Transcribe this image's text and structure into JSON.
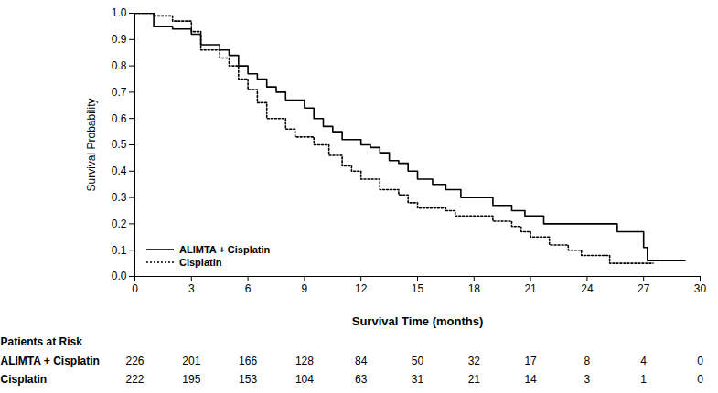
{
  "chart_data": {
    "type": "line",
    "x_label": "Survival Time (months)",
    "y_label": "Survival Probability",
    "xlim": [
      0,
      30
    ],
    "xticks": [
      0,
      3,
      6,
      9,
      12,
      15,
      18,
      21,
      24,
      27,
      30
    ],
    "ylim": [
      0,
      1
    ],
    "yticks": [
      {
        "value": 0,
        "label": "0.0"
      },
      0.1,
      0.2,
      0.3,
      0.4,
      0.5,
      0.6,
      0.7,
      0.8,
      0.9,
      {
        "value": 1,
        "label": "1.0"
      }
    ],
    "grid": false,
    "legend": "lower left",
    "series": [
      {
        "name": "ALIMTA + Cisplatin",
        "color": "#000000",
        "line_style": "solid",
        "x": [
          0,
          1,
          2,
          3,
          3.5,
          4.5,
          5,
          5.5,
          6,
          6.5,
          7,
          7.5,
          8,
          9,
          9.5,
          10,
          10.5,
          11,
          12,
          12.5,
          13,
          13.5,
          14,
          14.5,
          15,
          15.8,
          16.5,
          17.3,
          19,
          20,
          20.7,
          21.7,
          25.6,
          27,
          27.2,
          29.2
        ],
        "values": [
          1.0,
          0.95,
          0.94,
          0.92,
          0.88,
          0.86,
          0.84,
          0.8,
          0.77,
          0.75,
          0.72,
          0.7,
          0.67,
          0.64,
          0.6,
          0.57,
          0.55,
          0.52,
          0.5,
          0.49,
          0.47,
          0.44,
          0.43,
          0.4,
          0.37,
          0.35,
          0.33,
          0.3,
          0.27,
          0.25,
          0.23,
          0.2,
          0.17,
          0.11,
          0.06,
          0.06
        ]
      },
      {
        "name": "Cisplatin",
        "color": "#000000",
        "line_style": "dotted",
        "x": [
          0,
          1,
          2,
          3,
          3.5,
          4.5,
          5,
          5.5,
          6,
          6.5,
          7,
          8,
          8.5,
          9.5,
          10.3,
          11,
          11.5,
          12,
          13,
          14,
          14.5,
          15,
          16.5,
          17,
          19,
          20,
          20.5,
          21,
          22,
          23,
          23.7,
          25.2,
          27.5
        ],
        "values": [
          1.0,
          0.99,
          0.97,
          0.93,
          0.86,
          0.83,
          0.8,
          0.75,
          0.71,
          0.66,
          0.6,
          0.56,
          0.53,
          0.5,
          0.46,
          0.42,
          0.4,
          0.37,
          0.33,
          0.31,
          0.28,
          0.26,
          0.25,
          0.23,
          0.21,
          0.19,
          0.17,
          0.15,
          0.12,
          0.1,
          0.08,
          0.05,
          0.05
        ]
      }
    ],
    "risk_table": {
      "title": "Patients at Risk",
      "times": [
        0,
        3,
        6,
        9,
        12,
        15,
        18,
        21,
        24,
        27,
        30
      ],
      "rows": [
        {
          "name": "ALIMTA + Cisplatin",
          "values": [
            226,
            201,
            166,
            128,
            84,
            50,
            32,
            17,
            8,
            4,
            0
          ]
        },
        {
          "name": "Cisplatin",
          "values": [
            222,
            195,
            153,
            104,
            63,
            31,
            21,
            14,
            3,
            1,
            0
          ]
        }
      ]
    }
  }
}
